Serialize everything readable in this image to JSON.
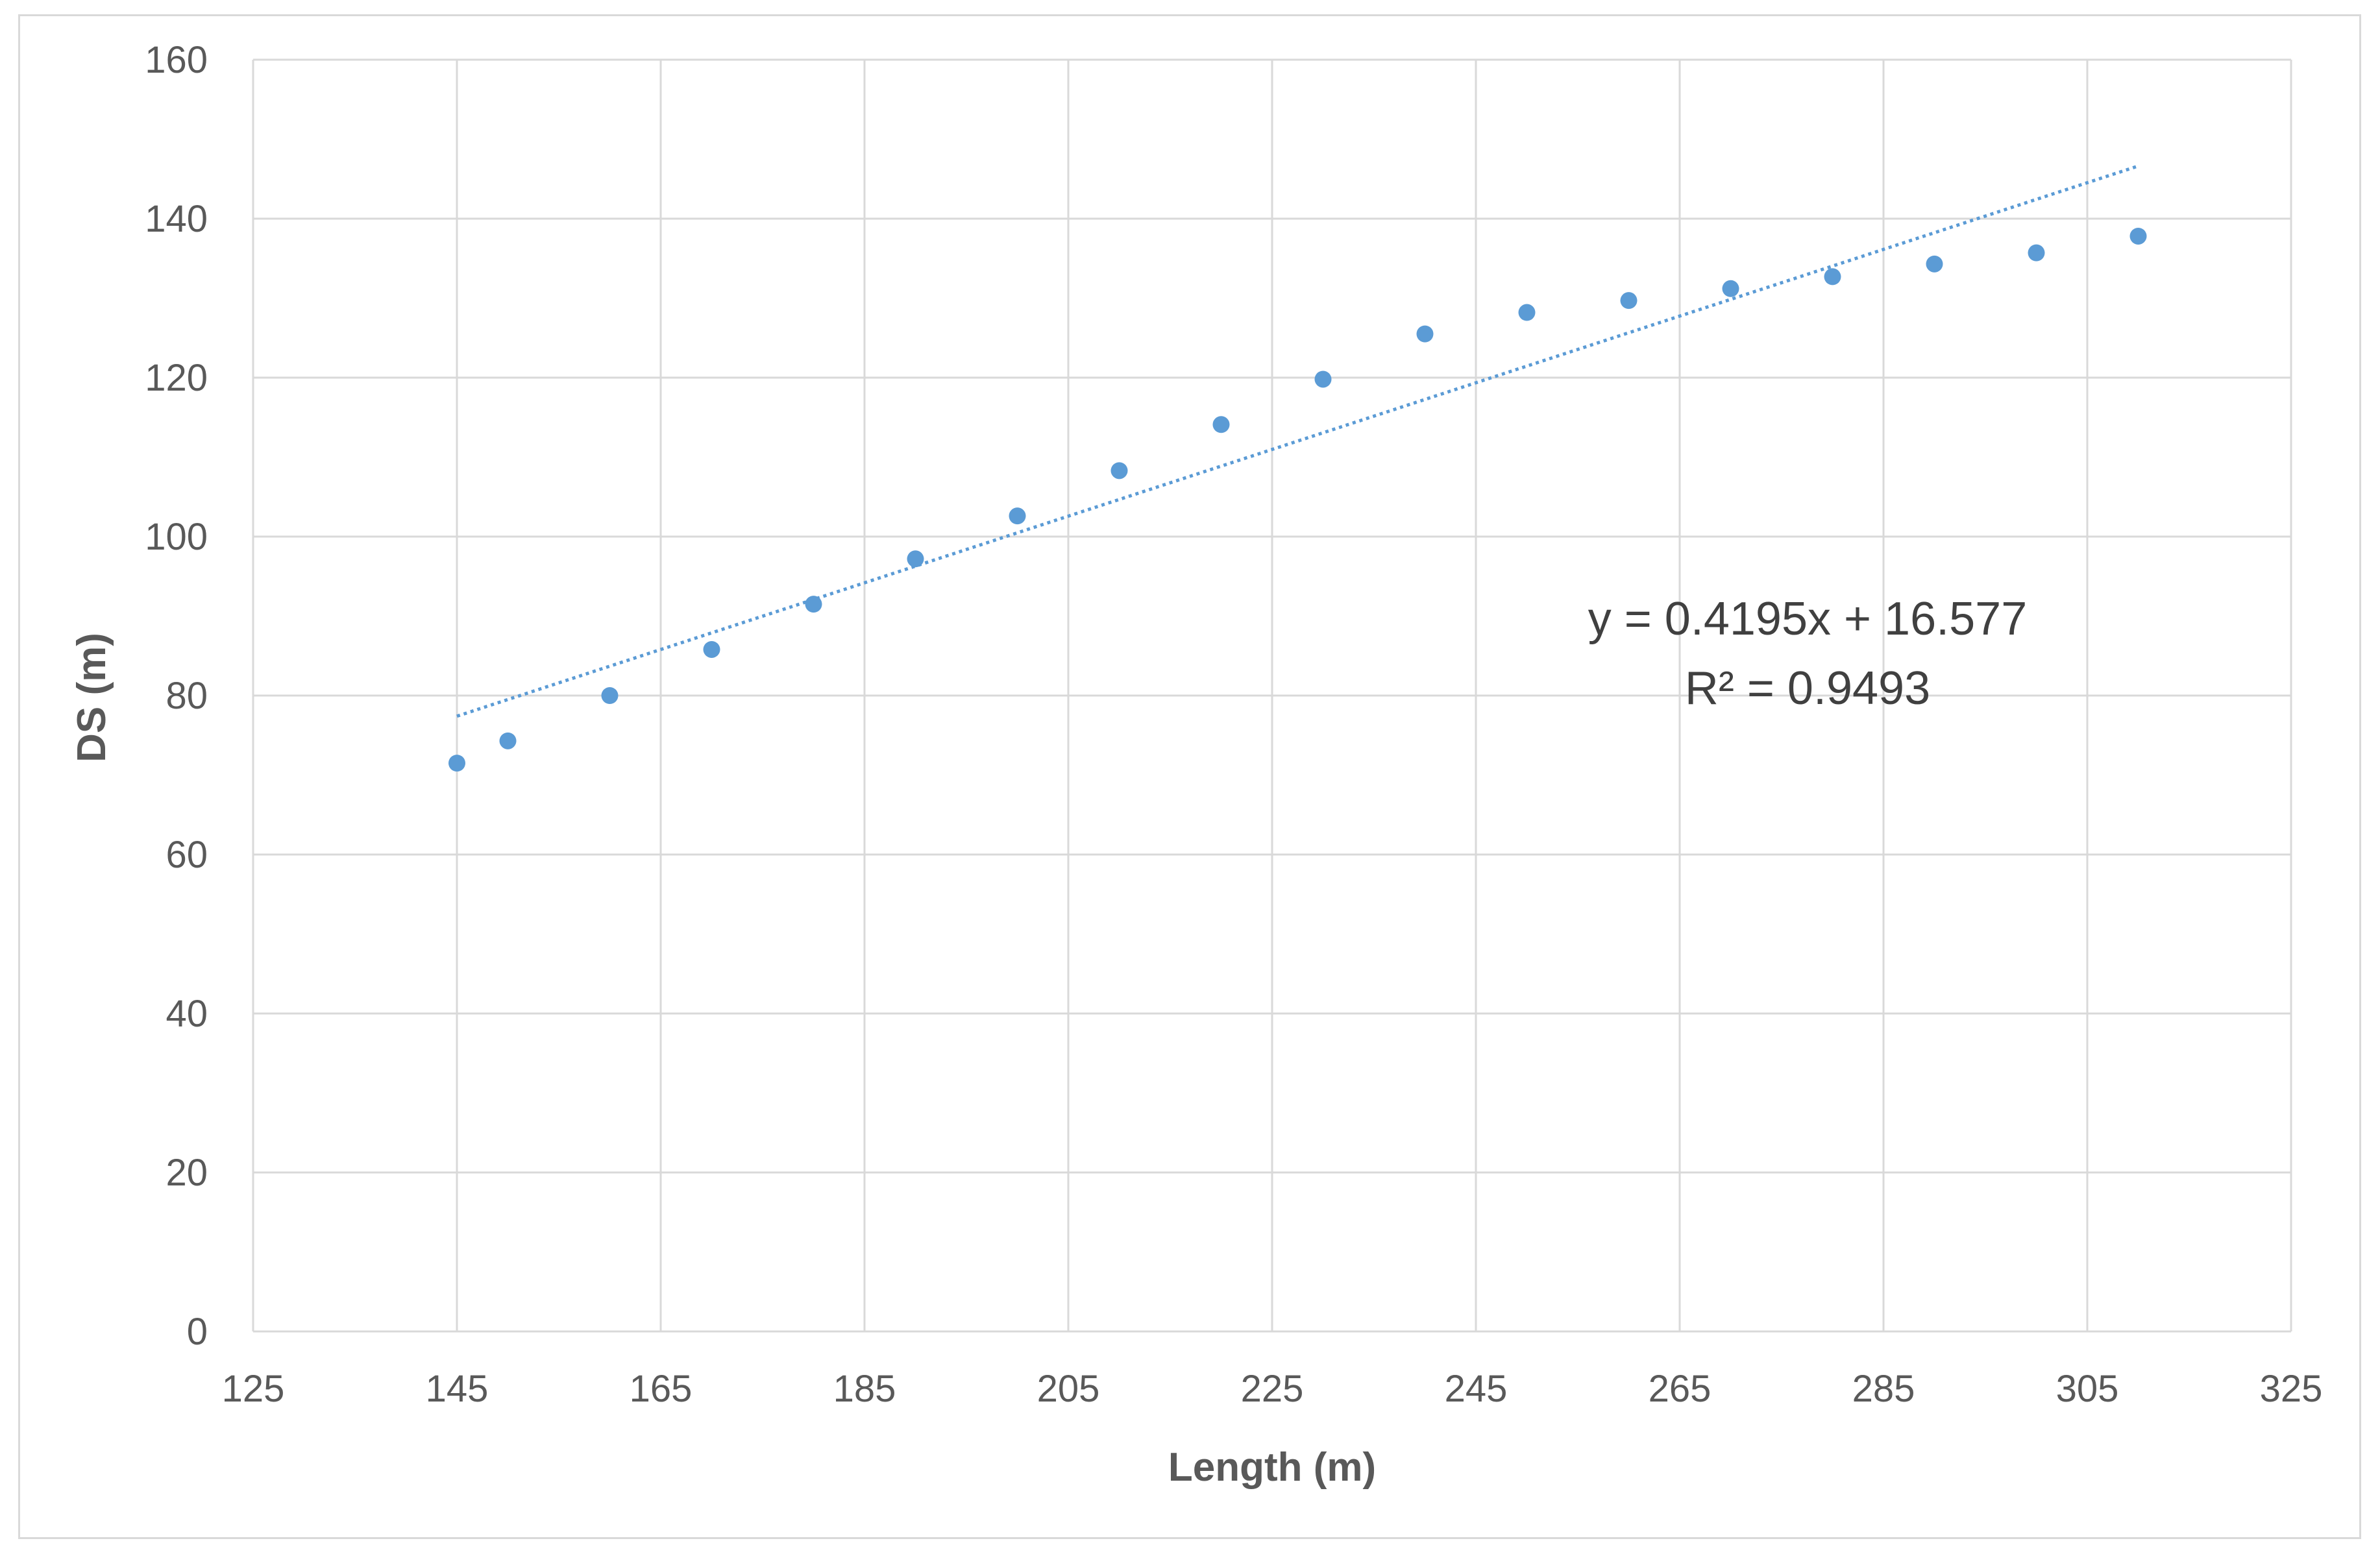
{
  "chart_data": {
    "type": "scatter",
    "title": "",
    "xlabel": "Length (m)",
    "ylabel": "DS (m)",
    "xlim": [
      125,
      325
    ],
    "ylim": [
      0,
      160
    ],
    "x_ticks": [
      125,
      145,
      165,
      185,
      205,
      225,
      245,
      265,
      285,
      305,
      325
    ],
    "y_ticks": [
      0,
      20,
      40,
      60,
      80,
      100,
      120,
      140,
      160
    ],
    "grid": true,
    "legend": "none",
    "series": [
      {
        "x": [
          145,
          150,
          160,
          170,
          180,
          190,
          200,
          210,
          220,
          230,
          240,
          250,
          260,
          270,
          280,
          290,
          300,
          310
        ],
        "y": [
          71.5,
          74.3,
          80.0,
          85.8,
          91.5,
          97.2,
          102.6,
          108.3,
          114.1,
          119.8,
          125.5,
          128.2,
          129.7,
          131.2,
          132.7,
          134.3,
          135.7,
          137.8
        ],
        "color": "#5b9bd5",
        "marker": "circle"
      }
    ],
    "trendline": {
      "type": "linear",
      "slope": 0.4195,
      "intercept": 16.577,
      "x_range": [
        145,
        310
      ],
      "style": "dotted",
      "color": "#5b9bd5",
      "equation_label": "y = 0.4195x + 16.577",
      "r2_label": "R² = 0.9493"
    },
    "colors": {
      "grid": "#d9d9d9",
      "tick_text": "#595959",
      "annotation_text": "#404040"
    }
  }
}
